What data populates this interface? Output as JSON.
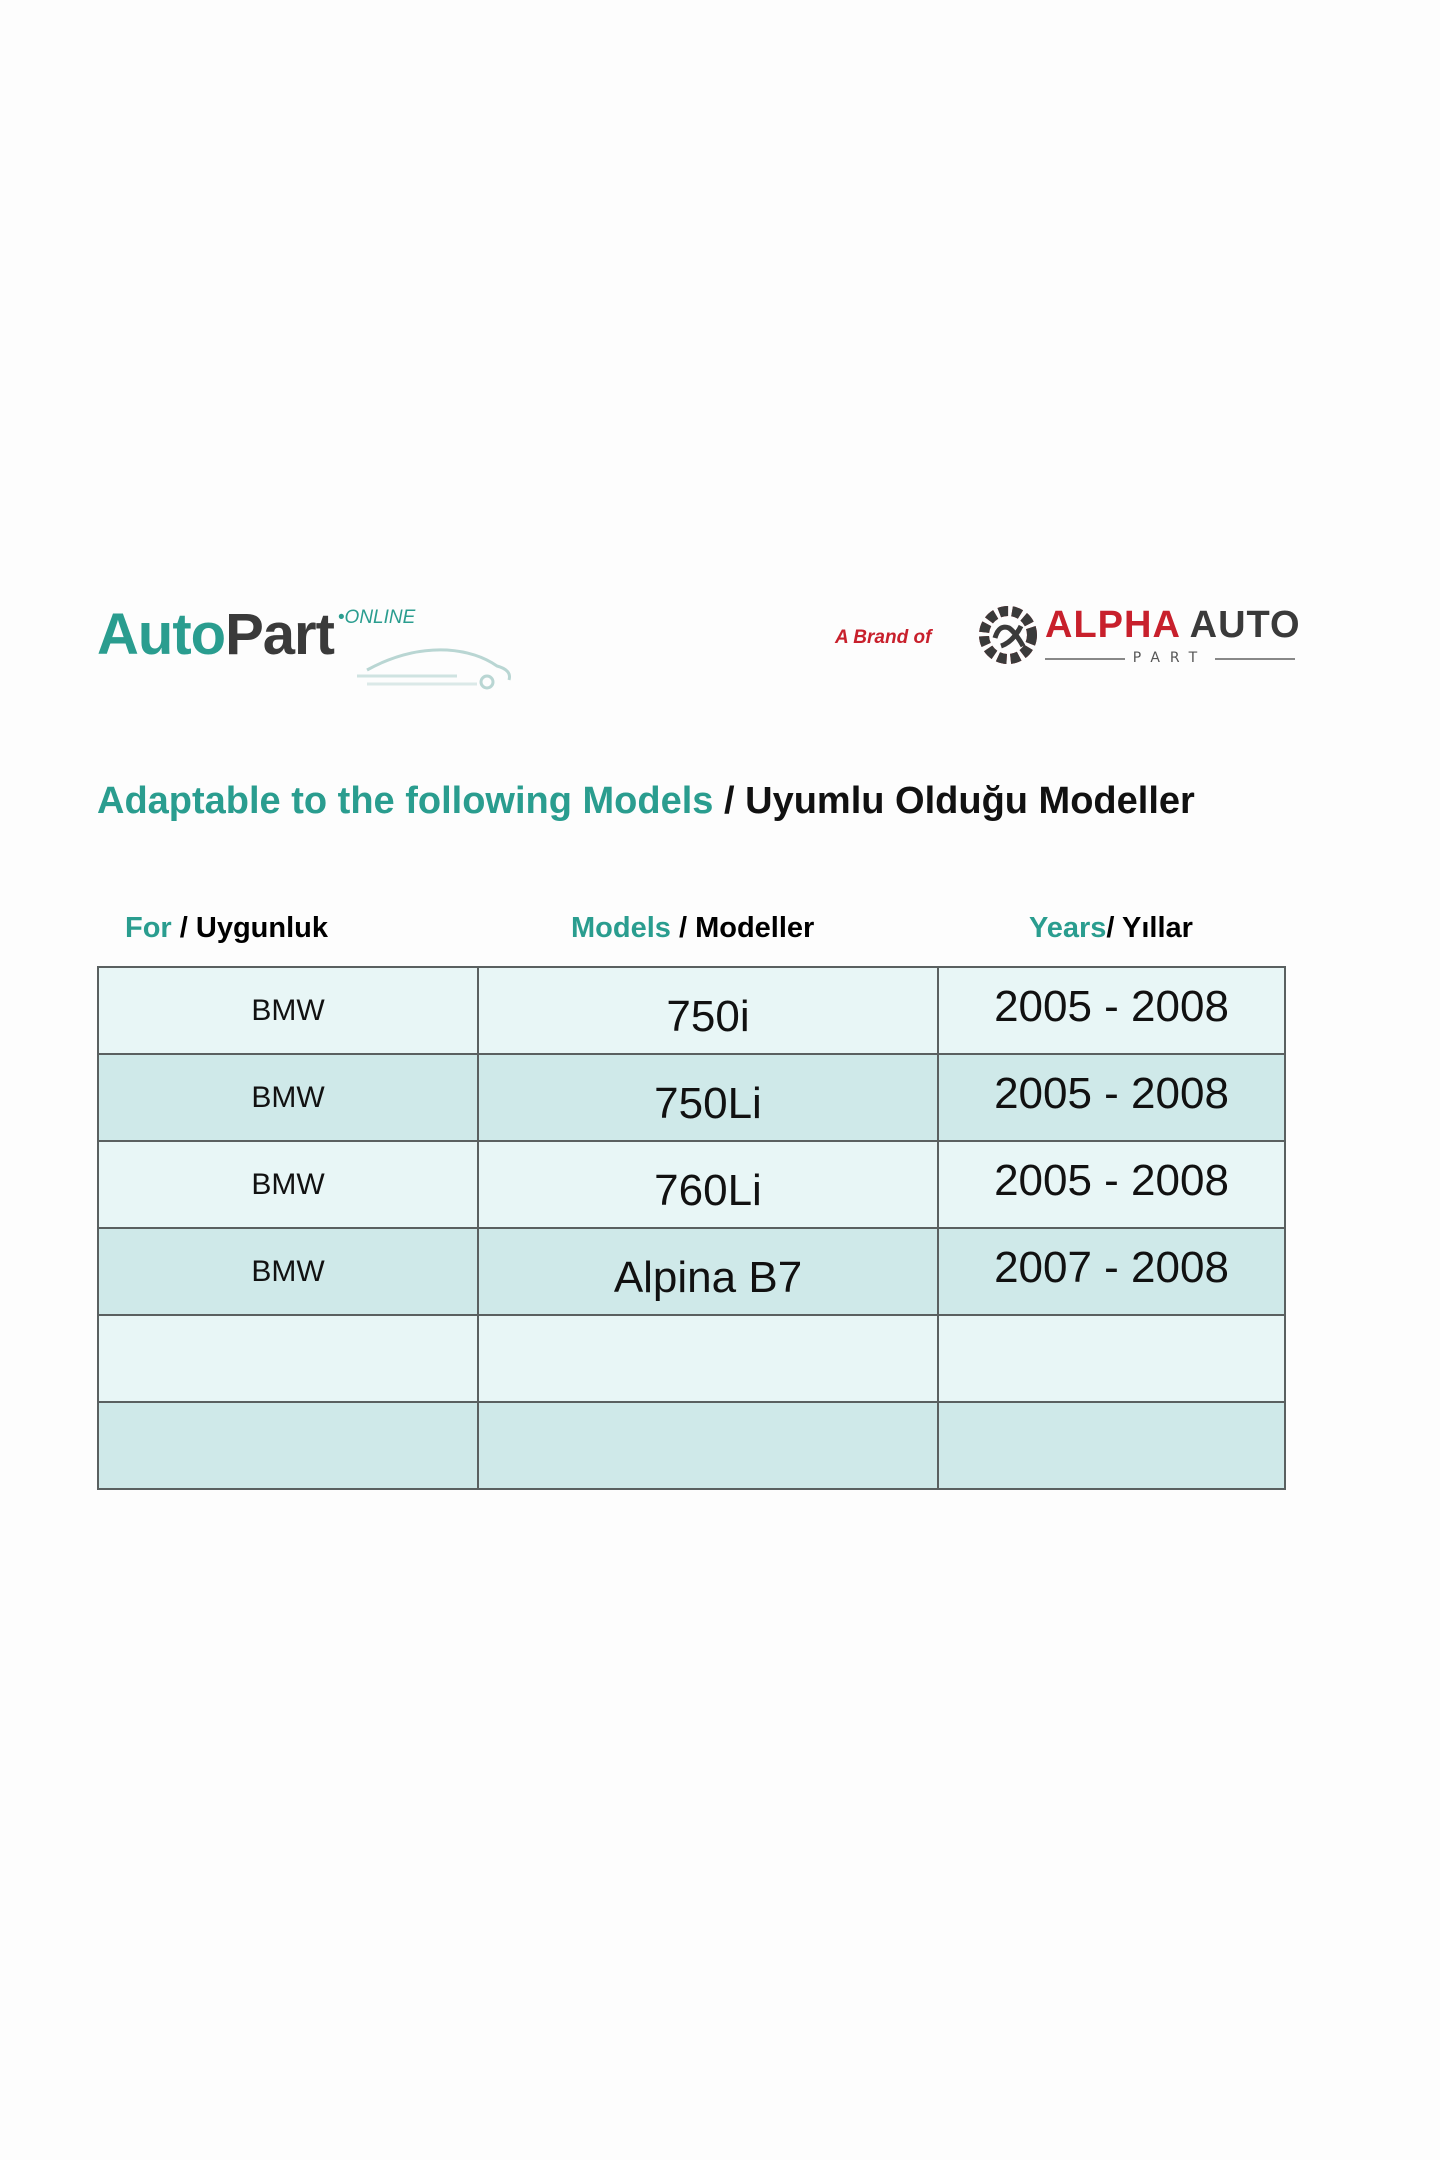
{
  "logos": {
    "autopart": {
      "part1": "Auto",
      "part2": "Part",
      "suffix": "•ONLINE"
    },
    "alpha": {
      "prefix": "A Brand of",
      "name_red": "ALPHA",
      "name_dark": "AUTO",
      "sub": "PART"
    }
  },
  "colors": {
    "teal": "#2a9d8f",
    "dark": "#3a3a3a",
    "red": "#c8202c",
    "row_light": "#e8f6f6",
    "row_alt": "#cfe9e9"
  },
  "title": {
    "en": "Adaptable to the following Models",
    "sep": " / ",
    "tr": "Uyumlu Olduğu Modeller"
  },
  "headers": [
    {
      "en": "For",
      "tr": " / Uygunluk"
    },
    {
      "en": "Models",
      "tr": " / Modeller"
    },
    {
      "en": "Years",
      "tr": "/ Yıllar"
    }
  ],
  "rows": [
    [
      "BMW",
      "750i",
      "2005 - 2008"
    ],
    [
      "BMW",
      "750Li",
      "2005 - 2008"
    ],
    [
      "BMW",
      "760Li",
      "2005 - 2008"
    ],
    [
      "BMW",
      "Alpina B7",
      "2007 - 2008"
    ],
    [
      "",
      "",
      ""
    ],
    [
      "",
      "",
      ""
    ]
  ]
}
